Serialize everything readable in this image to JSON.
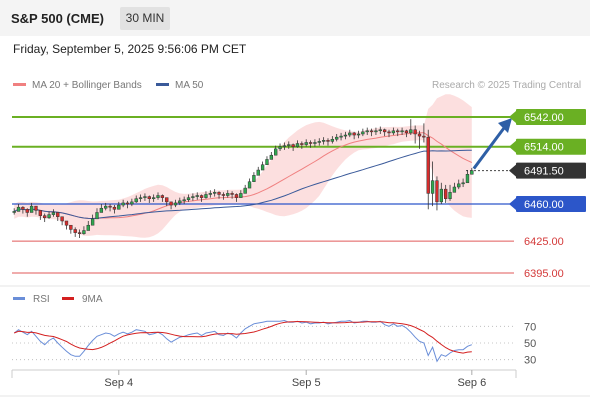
{
  "header": {
    "instrument": "S&P 500 (CME)",
    "timeframe": "30 MIN",
    "datetime": "Friday, September 5, 2025 9:56:06 PM CET"
  },
  "legend": {
    "ma20": "MA 20 + Bollinger Bands",
    "ma50": "MA 50",
    "attribution": "Research © 2025 Trading Central",
    "rsi": "RSI",
    "ma9": "9MA"
  },
  "colors": {
    "bollinger": "#f08080",
    "ma50": "#3a5a9a",
    "resistance": "#6ab023",
    "support": "#2c56c9",
    "target_line": "#e05a5a",
    "current": "#333333",
    "arrow": "#2e5fa6",
    "rsi": "#6a8ed8",
    "ma9": "#d42020"
  },
  "chart_data": [
    {
      "type": "candlestick",
      "title": "S&P 500 (CME)",
      "timeframe": "30 MIN",
      "x_ticks": [
        "Sep 4",
        "Sep 5",
        "Sep 6"
      ],
      "ylim": [
        6385,
        6555
      ],
      "levels": [
        {
          "value": 6542.0,
          "label": "6542.00",
          "kind": "resistance"
        },
        {
          "value": 6514.0,
          "label": "6514.00",
          "kind": "resistance"
        },
        {
          "value": 6491.5,
          "label": "6491.50",
          "kind": "current"
        },
        {
          "value": 6460.0,
          "label": "6460.00",
          "kind": "pivot"
        },
        {
          "value": 6425.0,
          "label": "6425.00",
          "kind": "support"
        },
        {
          "value": 6395.0,
          "label": "6395.00",
          "kind": "support"
        }
      ],
      "series": [
        {
          "name": "MA 20 + Bollinger Bands",
          "type": "line"
        },
        {
          "name": "MA 50",
          "type": "line"
        }
      ],
      "close": [
        6453,
        6457,
        6455,
        6452,
        6458,
        6454,
        6449,
        6447,
        6450,
        6452,
        6448,
        6444,
        6440,
        6436,
        6433,
        6432,
        6435,
        6440,
        6446,
        6452,
        6456,
        6458,
        6457,
        6455,
        6459,
        6461,
        6460,
        6462,
        6465,
        6466,
        6467,
        6465,
        6466,
        6468,
        6466,
        6462,
        6459,
        6461,
        6463,
        6464,
        6466,
        6467,
        6468,
        6466,
        6469,
        6470,
        6471,
        6469,
        6468,
        6470,
        6469,
        6466,
        6470,
        6475,
        6481,
        6487,
        6492,
        6497,
        6502,
        6506,
        6512,
        6514,
        6515,
        6516,
        6514,
        6517,
        6516,
        6518,
        6517,
        6518,
        6519,
        6520,
        6519,
        6521,
        6523,
        6524,
        6525,
        6527,
        6525,
        6526,
        6528,
        6529,
        6528,
        6529,
        6530,
        6528,
        6527,
        6529,
        6528,
        6529,
        6527,
        6530,
        6526,
        6524,
        6523,
        6470,
        6482,
        6462,
        6474,
        6465,
        6471,
        6476,
        6479,
        6480,
        6488,
        6491.5
      ],
      "high": [
        6456,
        6460,
        6458,
        6456,
        6461,
        6458,
        6453,
        6451,
        6453,
        6455,
        6451,
        6448,
        6444,
        6440,
        6438,
        6436,
        6439,
        6444,
        6450,
        6456,
        6460,
        6461,
        6460,
        6459,
        6462,
        6464,
        6463,
        6465,
        6468,
        6469,
        6470,
        6468,
        6469,
        6471,
        6469,
        6466,
        6462,
        6464,
        6466,
        6467,
        6469,
        6470,
        6471,
        6469,
        6472,
        6473,
        6474,
        6472,
        6471,
        6473,
        6472,
        6470,
        6473,
        6478,
        6484,
        6490,
        6495,
        6500,
        6505,
        6509,
        6515,
        6517,
        6518,
        6519,
        6517,
        6520,
        6519,
        6521,
        6520,
        6521,
        6522,
        6523,
        6522,
        6524,
        6526,
        6527,
        6528,
        6530,
        6528,
        6529,
        6531,
        6532,
        6531,
        6532,
        6533,
        6531,
        6530,
        6532,
        6531,
        6532,
        6530,
        6540,
        6534,
        6529,
        6536,
        6530,
        6500,
        6486,
        6480,
        6478,
        6478,
        6480,
        6483,
        6484,
        6492,
        6494
      ],
      "low": [
        6450,
        6453,
        6451,
        6448,
        6454,
        6450,
        6445,
        6443,
        6446,
        6448,
        6444,
        6440,
        6436,
        6432,
        6429,
        6428,
        6431,
        6436,
        6442,
        6448,
        6452,
        6454,
        6453,
        6451,
        6455,
        6457,
        6456,
        6458,
        6461,
        6462,
        6463,
        6461,
        6462,
        6464,
        6462,
        6458,
        6455,
        6457,
        6459,
        6460,
        6462,
        6463,
        6464,
        6462,
        6465,
        6466,
        6467,
        6465,
        6464,
        6466,
        6465,
        6462,
        6466,
        6471,
        6477,
        6483,
        6488,
        6493,
        6498,
        6502,
        6508,
        6510,
        6511,
        6512,
        6510,
        6513,
        6512,
        6514,
        6513,
        6514,
        6515,
        6516,
        6515,
        6517,
        6519,
        6520,
        6521,
        6523,
        6521,
        6522,
        6524,
        6525,
        6524,
        6525,
        6526,
        6524,
        6523,
        6525,
        6524,
        6525,
        6523,
        6525,
        6517,
        6512,
        6518,
        6455,
        6458,
        6454,
        6460,
        6461,
        6463,
        6471,
        6474,
        6476,
        6484,
        6488
      ],
      "rsi_ylim": [
        20,
        80
      ],
      "rsi_ticks": [
        30,
        50,
        70
      ],
      "rsi": [
        62,
        66,
        63,
        60,
        64,
        58,
        52,
        48,
        53,
        56,
        50,
        45,
        40,
        36,
        34,
        34,
        40,
        47,
        53,
        58,
        60,
        62,
        61,
        58,
        61,
        63,
        61,
        63,
        66,
        65,
        64,
        60,
        61,
        63,
        60,
        55,
        51,
        54,
        57,
        58,
        60,
        61,
        62,
        59,
        62,
        63,
        64,
        60,
        59,
        62,
        60,
        56,
        62,
        67,
        70,
        73,
        74,
        75,
        76,
        76,
        76,
        76,
        77,
        75,
        75,
        76,
        74,
        75,
        73,
        74,
        74,
        75,
        73,
        74,
        75,
        76,
        76,
        77,
        74,
        75,
        76,
        76,
        75,
        75,
        76,
        72,
        70,
        73,
        70,
        71,
        68,
        63,
        57,
        52,
        50,
        35,
        45,
        28,
        36,
        34,
        38,
        41,
        42,
        42,
        46,
        48
      ]
    }
  ]
}
